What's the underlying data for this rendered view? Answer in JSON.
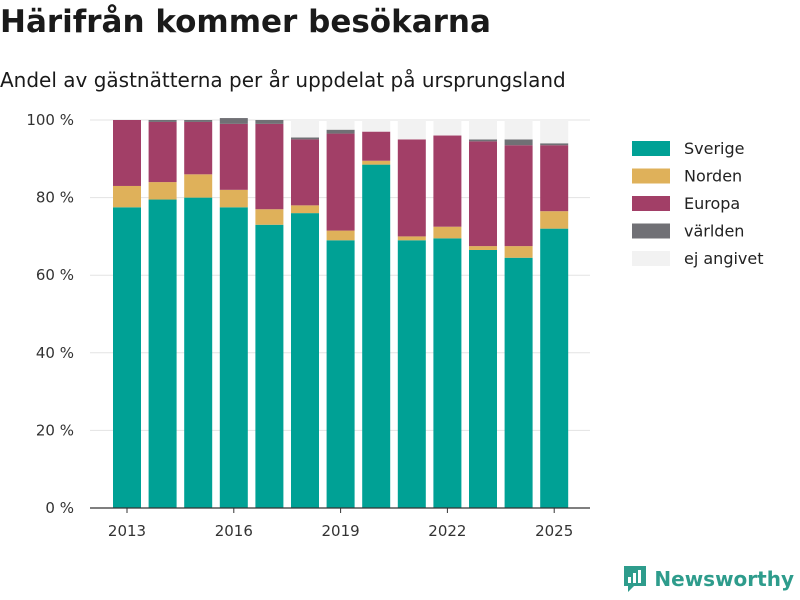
{
  "title": "Härifrån kommer besökarna",
  "subtitle": "Andel av gästnätterna per år uppdelat på ursprungsland",
  "brand": {
    "name": "Newsworthy",
    "icon": "newsworthy-logo-icon",
    "color": "#2e9c8c"
  },
  "chart_data": {
    "type": "bar",
    "stacked": true,
    "x": [
      2013,
      2014,
      2015,
      2016,
      2017,
      2018,
      2019,
      2020,
      2021,
      2022,
      2023,
      2024,
      2025
    ],
    "xticks": [
      "2013",
      "2016",
      "2019",
      "2022",
      "2025"
    ],
    "yticks": [
      "0 %",
      "20 %",
      "40 %",
      "60 %",
      "80 %",
      "100 %"
    ],
    "ylim": [
      0,
      100
    ],
    "grid": true,
    "legend_position": "right",
    "series": [
      {
        "name": "Sverige",
        "color": "#00a195",
        "values": [
          77.5,
          79.5,
          80,
          77.5,
          73,
          76,
          69,
          88.5,
          69,
          69.5,
          66.5,
          64.5,
          72
        ]
      },
      {
        "name": "Norden",
        "color": "#dfb15a",
        "values": [
          5.5,
          4.5,
          6,
          4.5,
          4,
          2,
          2.5,
          1,
          1,
          3,
          1,
          3,
          4.5
        ]
      },
      {
        "name": "Europa",
        "color": "#a23f67",
        "values": [
          17,
          15.5,
          13.5,
          17,
          22,
          17,
          25,
          7.5,
          25,
          23.5,
          27,
          26,
          17
        ]
      },
      {
        "name": "världen",
        "color": "#707075",
        "values": [
          0,
          0.5,
          0.5,
          1.5,
          1,
          0.5,
          1,
          0,
          0,
          0,
          0.5,
          1.5,
          0.5
        ]
      },
      {
        "name": "ej angivet",
        "color": "#f2f2f2",
        "values": [
          0,
          0,
          0,
          0,
          0,
          4.5,
          2.5,
          3,
          5,
          4,
          5,
          5,
          6
        ]
      }
    ]
  }
}
